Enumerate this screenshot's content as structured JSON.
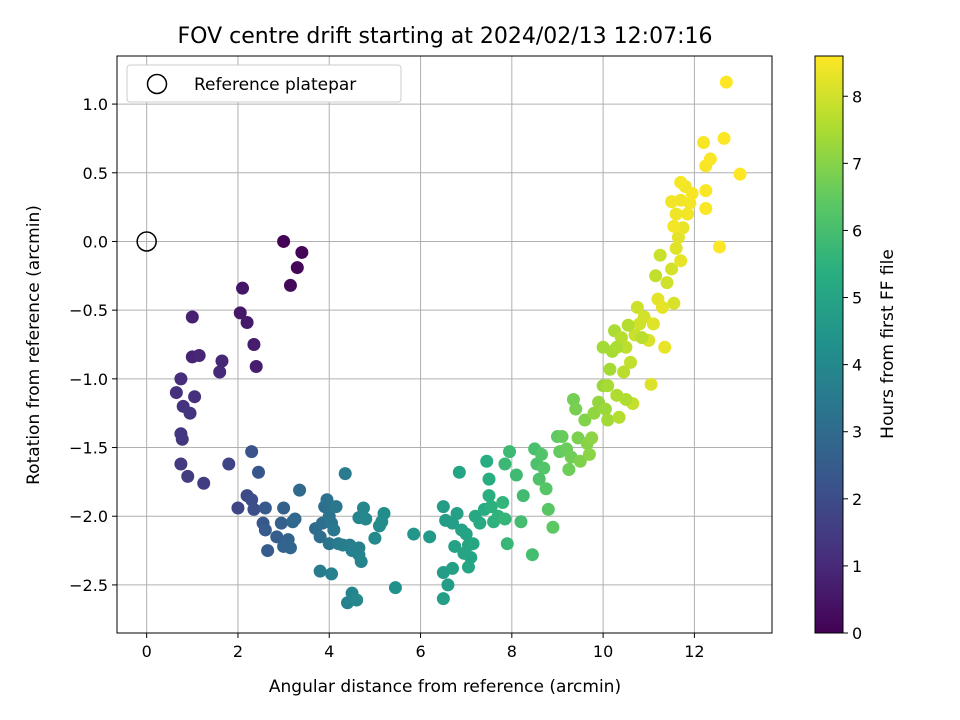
{
  "chart_data": {
    "type": "scatter",
    "title": "FOV centre drift starting at 2024/02/13 12:07:16",
    "xlabel": "Angular distance from reference (arcmin)",
    "ylabel": "Rotation from reference (arcmin)",
    "xlim": [
      -0.65,
      13.7
    ],
    "ylim": [
      -2.85,
      1.35
    ],
    "xticks": [
      0,
      2,
      4,
      6,
      8,
      10,
      12
    ],
    "xtick_labels": [
      "0",
      "2",
      "4",
      "6",
      "8",
      "10",
      "12"
    ],
    "yticks": [
      1.0,
      0.5,
      0.0,
      -0.5,
      -1.0,
      -1.5,
      -2.0,
      -2.5
    ],
    "ytick_labels": [
      "1.0",
      "0.5",
      "0.0",
      "−0.5",
      "−1.0",
      "−1.5",
      "−2.0",
      "−2.5"
    ],
    "grid": true,
    "legend": {
      "position": "top-left",
      "entries": [
        "Reference platepar"
      ]
    },
    "reference_point": {
      "x": 0,
      "y": 0
    },
    "colorbar": {
      "label": "Hours from first FF file",
      "min": 0,
      "max": 8.6,
      "ticks": [
        0,
        1,
        2,
        3,
        4,
        5,
        6,
        7,
        8
      ],
      "tick_labels": [
        "0",
        "1",
        "2",
        "3",
        "4",
        "5",
        "6",
        "7",
        "8"
      ],
      "colormap": "viridis"
    },
    "points": [
      [
        3.0,
        0.0,
        0.05
      ],
      [
        3.4,
        -0.08,
        0.1
      ],
      [
        3.3,
        -0.19,
        0.15
      ],
      [
        3.15,
        -0.32,
        0.2
      ],
      [
        2.1,
        -0.34,
        0.5
      ],
      [
        2.05,
        -0.52,
        0.55
      ],
      [
        2.2,
        -0.59,
        0.6
      ],
      [
        2.35,
        -0.75,
        0.65
      ],
      [
        2.4,
        -0.91,
        0.7
      ],
      [
        1.0,
        -0.55,
        0.8
      ],
      [
        1.0,
        -0.84,
        0.85
      ],
      [
        1.15,
        -0.83,
        0.9
      ],
      [
        1.65,
        -0.87,
        0.95
      ],
      [
        1.6,
        -0.95,
        1.0
      ],
      [
        0.75,
        -1.0,
        1.1
      ],
      [
        0.65,
        -1.1,
        1.15
      ],
      [
        1.05,
        -1.13,
        1.2
      ],
      [
        0.8,
        -1.2,
        1.25
      ],
      [
        0.95,
        -1.25,
        1.3
      ],
      [
        0.75,
        -1.4,
        1.35
      ],
      [
        0.78,
        -1.44,
        1.4
      ],
      [
        0.75,
        -1.62,
        1.45
      ],
      [
        0.9,
        -1.71,
        1.5
      ],
      [
        1.25,
        -1.76,
        1.55
      ],
      [
        1.8,
        -1.62,
        1.7
      ],
      [
        2.0,
        -1.94,
        1.8
      ],
      [
        2.2,
        -1.85,
        1.9
      ],
      [
        2.3,
        -1.88,
        2.0
      ],
      [
        2.35,
        -1.95,
        2.05
      ],
      [
        2.3,
        -1.53,
        2.2
      ],
      [
        2.45,
        -1.68,
        2.3
      ],
      [
        2.55,
        -2.05,
        2.35
      ],
      [
        2.6,
        -1.94,
        2.4
      ],
      [
        2.6,
        -2.1,
        2.45
      ],
      [
        2.65,
        -2.25,
        2.5
      ],
      [
        2.85,
        -2.15,
        2.55
      ],
      [
        2.95,
        -2.05,
        2.6
      ],
      [
        3.0,
        -1.94,
        2.65
      ],
      [
        3.1,
        -2.17,
        2.7
      ],
      [
        3.0,
        -2.22,
        2.75
      ],
      [
        3.15,
        -2.23,
        2.8
      ],
      [
        3.2,
        -2.04,
        2.85
      ],
      [
        3.25,
        -2.02,
        2.9
      ],
      [
        3.35,
        -1.81,
        2.95
      ],
      [
        3.7,
        -2.09,
        3.0
      ],
      [
        3.8,
        -2.15,
        3.05
      ],
      [
        3.85,
        -2.05,
        3.1
      ],
      [
        3.9,
        -1.93,
        3.15
      ],
      [
        3.95,
        -1.88,
        3.2
      ],
      [
        4.0,
        -2.0,
        3.25
      ],
      [
        4.0,
        -2.2,
        3.3
      ],
      [
        4.05,
        -2.05,
        3.35
      ],
      [
        4.15,
        -1.93,
        3.4
      ],
      [
        4.1,
        -2.1,
        3.45
      ],
      [
        4.2,
        -2.2,
        3.5
      ],
      [
        4.35,
        -1.69,
        3.55
      ],
      [
        4.3,
        -2.21,
        3.6
      ],
      [
        4.45,
        -2.21,
        3.65
      ],
      [
        4.5,
        -2.25,
        3.7
      ],
      [
        4.65,
        -2.23,
        3.75
      ],
      [
        4.65,
        -2.28,
        3.8
      ],
      [
        4.7,
        -2.33,
        3.85
      ],
      [
        4.65,
        -2.01,
        3.9
      ],
      [
        4.75,
        -1.94,
        3.95
      ],
      [
        4.8,
        -2.02,
        4.0
      ],
      [
        5.0,
        -2.16,
        4.05
      ],
      [
        5.1,
        -2.07,
        4.1
      ],
      [
        5.15,
        -2.04,
        4.15
      ],
      [
        5.2,
        -1.98,
        4.2
      ],
      [
        3.8,
        -2.4,
        3.6
      ],
      [
        4.05,
        -2.42,
        3.7
      ],
      [
        4.4,
        -2.63,
        3.8
      ],
      [
        4.5,
        -2.56,
        3.9
      ],
      [
        4.6,
        -2.61,
        4.0
      ],
      [
        5.45,
        -2.52,
        4.3
      ],
      [
        5.85,
        -2.13,
        4.5
      ],
      [
        6.2,
        -2.15,
        4.6
      ],
      [
        6.5,
        -1.93,
        4.7
      ],
      [
        6.55,
        -2.03,
        4.75
      ],
      [
        6.7,
        -2.05,
        4.8
      ],
      [
        6.8,
        -1.98,
        4.85
      ],
      [
        6.9,
        -2.1,
        4.9
      ],
      [
        7.0,
        -2.13,
        4.95
      ],
      [
        7.05,
        -2.21,
        5.0
      ],
      [
        7.1,
        -2.3,
        5.05
      ],
      [
        6.5,
        -2.41,
        4.7
      ],
      [
        6.6,
        -2.5,
        4.75
      ],
      [
        6.5,
        -2.6,
        4.8
      ],
      [
        6.7,
        -2.38,
        4.85
      ],
      [
        6.75,
        -2.22,
        4.9
      ],
      [
        6.85,
        -1.68,
        4.95
      ],
      [
        6.95,
        -2.27,
        5.0
      ],
      [
        7.05,
        -2.37,
        5.05
      ],
      [
        7.15,
        -2.2,
        5.1
      ],
      [
        7.2,
        -2.0,
        5.15
      ],
      [
        7.3,
        -2.05,
        5.2
      ],
      [
        7.4,
        -1.95,
        5.25
      ],
      [
        7.45,
        -1.6,
        5.3
      ],
      [
        7.5,
        -1.73,
        5.35
      ],
      [
        7.5,
        -1.85,
        5.4
      ],
      [
        7.55,
        -1.93,
        5.45
      ],
      [
        7.6,
        -2.04,
        5.5
      ],
      [
        7.7,
        -2.0,
        5.55
      ],
      [
        7.8,
        -1.9,
        5.6
      ],
      [
        7.85,
        -2.02,
        5.65
      ],
      [
        7.9,
        -2.2,
        5.7
      ],
      [
        7.85,
        -1.62,
        5.75
      ],
      [
        7.95,
        -1.53,
        5.8
      ],
      [
        8.1,
        -1.7,
        5.85
      ],
      [
        8.25,
        -1.85,
        5.9
      ],
      [
        8.2,
        -2.04,
        5.95
      ],
      [
        8.45,
        -2.28,
        6.0
      ],
      [
        8.5,
        -1.51,
        6.05
      ],
      [
        8.55,
        -1.62,
        6.1
      ],
      [
        8.6,
        -1.73,
        6.15
      ],
      [
        8.65,
        -1.55,
        6.2
      ],
      [
        8.7,
        -1.65,
        6.25
      ],
      [
        8.75,
        -1.8,
        6.3
      ],
      [
        8.8,
        -1.95,
        6.35
      ],
      [
        8.9,
        -2.08,
        6.4
      ],
      [
        9.0,
        -1.42,
        6.45
      ],
      [
        9.05,
        -1.53,
        6.5
      ],
      [
        9.1,
        -1.42,
        6.55
      ],
      [
        9.2,
        -1.51,
        6.6
      ],
      [
        9.25,
        -1.66,
        6.65
      ],
      [
        9.3,
        -1.57,
        6.7
      ],
      [
        9.35,
        -1.15,
        6.75
      ],
      [
        9.4,
        -1.22,
        6.8
      ],
      [
        9.45,
        -1.43,
        6.85
      ],
      [
        9.5,
        -1.6,
        6.9
      ],
      [
        9.6,
        -1.3,
        6.95
      ],
      [
        9.65,
        -1.47,
        7.0
      ],
      [
        9.7,
        -1.55,
        7.05
      ],
      [
        9.75,
        -1.43,
        7.1
      ],
      [
        9.8,
        -1.25,
        7.15
      ],
      [
        9.9,
        -1.17,
        7.2
      ],
      [
        10.0,
        -1.05,
        7.25
      ],
      [
        10.05,
        -1.22,
        7.3
      ],
      [
        10.1,
        -1.3,
        7.35
      ],
      [
        10.15,
        -0.93,
        7.4
      ],
      [
        10.2,
        -0.8,
        7.45
      ],
      [
        10.25,
        -0.65,
        7.5
      ],
      [
        10.3,
        -1.12,
        7.55
      ],
      [
        10.35,
        -1.28,
        7.6
      ],
      [
        10.4,
        -0.7,
        7.65
      ],
      [
        10.45,
        -0.95,
        7.7
      ],
      [
        10.5,
        -0.77,
        7.75
      ],
      [
        10.6,
        -0.88,
        7.8
      ],
      [
        10.65,
        -1.18,
        7.85
      ],
      [
        10.7,
        -0.68,
        7.9
      ],
      [
        10.75,
        -0.48,
        7.95
      ],
      [
        10.8,
        -0.6,
        8.0
      ],
      [
        10.9,
        -0.55,
        8.05
      ],
      [
        11.0,
        -0.72,
        8.1
      ],
      [
        11.05,
        -1.04,
        8.15
      ],
      [
        11.1,
        -0.6,
        8.2
      ],
      [
        11.2,
        -0.42,
        8.25
      ],
      [
        11.3,
        -0.48,
        8.3
      ],
      [
        11.35,
        -0.77,
        8.35
      ],
      [
        10.0,
        -0.77,
        7.4
      ],
      [
        10.1,
        -1.05,
        7.45
      ],
      [
        10.3,
        -0.77,
        7.5
      ],
      [
        10.5,
        -1.15,
        7.55
      ],
      [
        10.55,
        -0.61,
        7.6
      ],
      [
        10.85,
        -0.7,
        7.7
      ],
      [
        11.15,
        -0.25,
        7.8
      ],
      [
        11.25,
        -0.1,
        7.9
      ],
      [
        11.4,
        -0.3,
        8.0
      ],
      [
        11.5,
        -0.2,
        8.05
      ],
      [
        11.55,
        -0.45,
        8.1
      ],
      [
        11.6,
        -0.05,
        8.2
      ],
      [
        11.65,
        0.03,
        8.25
      ],
      [
        11.7,
        -0.14,
        8.3
      ],
      [
        11.75,
        0.1,
        8.35
      ],
      [
        11.6,
        0.2,
        8.4
      ],
      [
        11.7,
        0.3,
        8.42
      ],
      [
        11.8,
        0.4,
        8.44
      ],
      [
        11.5,
        0.29,
        8.45
      ],
      [
        11.55,
        0.11,
        8.46
      ],
      [
        11.85,
        0.2,
        8.47
      ],
      [
        11.9,
        0.28,
        8.48
      ],
      [
        11.7,
        0.43,
        8.49
      ],
      [
        11.95,
        0.35,
        8.5
      ],
      [
        12.2,
        0.72,
        8.52
      ],
      [
        12.25,
        0.55,
        8.53
      ],
      [
        12.35,
        0.6,
        8.54
      ],
      [
        12.25,
        0.37,
        8.55
      ],
      [
        12.25,
        0.24,
        8.56
      ],
      [
        12.55,
        -0.04,
        8.57
      ],
      [
        12.65,
        0.75,
        8.58
      ],
      [
        12.7,
        1.16,
        8.6
      ],
      [
        13.0,
        0.49,
        8.6
      ]
    ]
  }
}
